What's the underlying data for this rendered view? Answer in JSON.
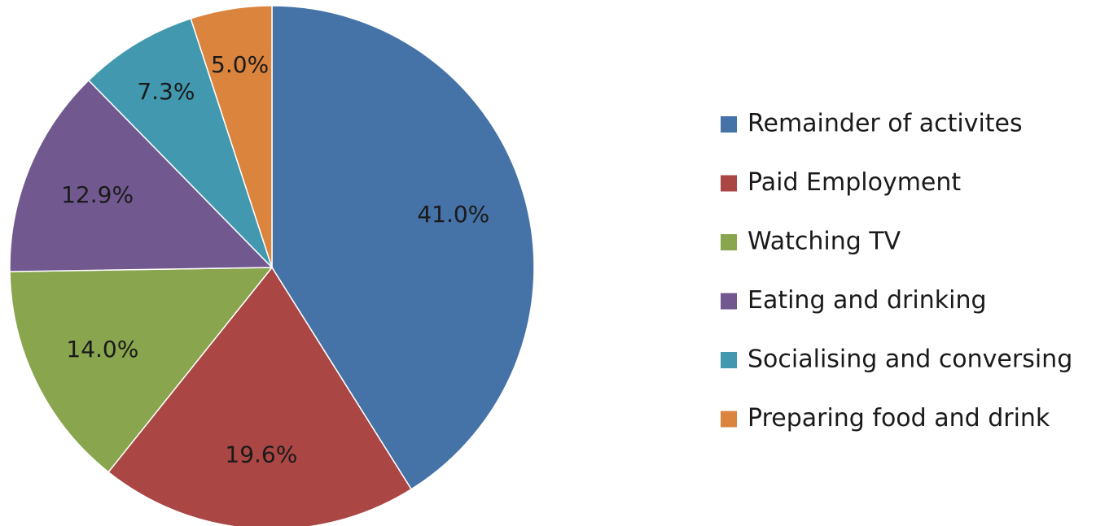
{
  "chart_data": {
    "type": "pie",
    "categories": [
      "Remainder of activites",
      "Paid Employment",
      "Watching TV",
      "Eating and drinking",
      "Socialising and conversing",
      "Preparing food and drink"
    ],
    "values": [
      41.0,
      19.6,
      14.0,
      12.9,
      7.3,
      5.0
    ],
    "value_labels": [
      "41.0%",
      "19.6%",
      "14.0%",
      "12.9%",
      "7.3%",
      "5.0%"
    ],
    "colors": [
      "#4572a7",
      "#aa4643",
      "#89a54e",
      "#71588f",
      "#4198af",
      "#db843d"
    ],
    "legend": "right"
  }
}
